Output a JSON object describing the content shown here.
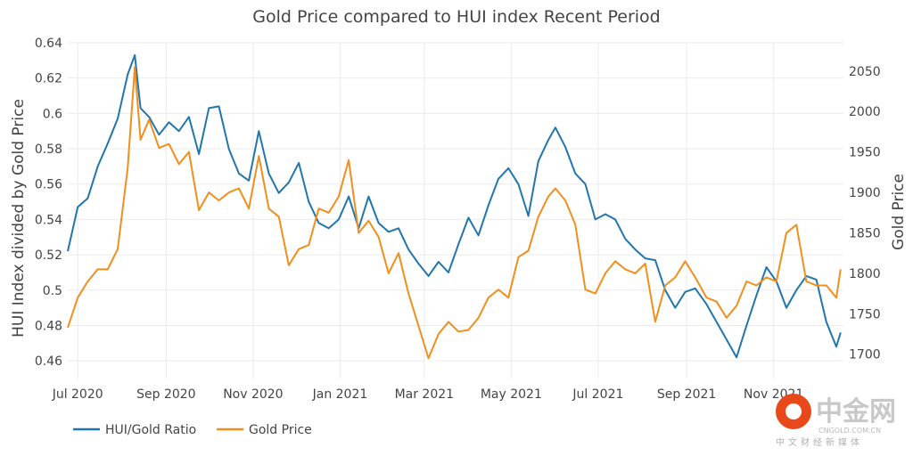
{
  "chart_data": {
    "type": "line",
    "title": "Gold Price compared to HUI index Recent Period",
    "x_tick_labels": [
      "Jul 2020",
      "Sep 2020",
      "Nov 2020",
      "Jan 2021",
      "Mar 2021",
      "May 2021",
      "Jul 2021",
      "Sep 2021",
      "Nov 2021"
    ],
    "x_range": [
      "2020-06-24",
      "2021-12-20"
    ],
    "y_left": {
      "label": "HUI Index divided by Gold Price",
      "range": [
        0.45,
        0.64
      ],
      "ticks": [
        "0.46",
        "0.48",
        "0.5",
        "0.52",
        "0.54",
        "0.56",
        "0.58",
        "0.6",
        "0.62",
        "0.64"
      ]
    },
    "y_right": {
      "label": "Gold Price",
      "range": [
        1670,
        2085
      ],
      "ticks": [
        "1700",
        "1750",
        "1800",
        "1850",
        "1900",
        "1950",
        "2000",
        "2050"
      ]
    },
    "grid": true,
    "legend_position": "bottom-left",
    "series": [
      {
        "name": "HUI/Gold Ratio",
        "axis": "left",
        "color": "#2176ae",
        "points": [
          [
            "2020-06-24",
            0.522
          ],
          [
            "2020-07-01",
            0.547
          ],
          [
            "2020-07-08",
            0.552
          ],
          [
            "2020-07-15",
            0.57
          ],
          [
            "2020-07-22",
            0.583
          ],
          [
            "2020-07-29",
            0.597
          ],
          [
            "2020-08-05",
            0.622
          ],
          [
            "2020-08-10",
            0.633
          ],
          [
            "2020-08-14",
            0.603
          ],
          [
            "2020-08-20",
            0.598
          ],
          [
            "2020-08-27",
            0.588
          ],
          [
            "2020-09-03",
            0.595
          ],
          [
            "2020-09-10",
            0.59
          ],
          [
            "2020-09-17",
            0.598
          ],
          [
            "2020-09-24",
            0.577
          ],
          [
            "2020-10-01",
            0.603
          ],
          [
            "2020-10-08",
            0.604
          ],
          [
            "2020-10-15",
            0.58
          ],
          [
            "2020-10-22",
            0.566
          ],
          [
            "2020-10-29",
            0.562
          ],
          [
            "2020-11-05",
            0.59
          ],
          [
            "2020-11-12",
            0.566
          ],
          [
            "2020-11-19",
            0.555
          ],
          [
            "2020-11-26",
            0.561
          ],
          [
            "2020-12-03",
            0.572
          ],
          [
            "2020-12-10",
            0.55
          ],
          [
            "2020-12-17",
            0.538
          ],
          [
            "2020-12-24",
            0.535
          ],
          [
            "2020-12-31",
            0.54
          ],
          [
            "2021-01-07",
            0.553
          ],
          [
            "2021-01-14",
            0.535
          ],
          [
            "2021-01-21",
            0.553
          ],
          [
            "2021-01-28",
            0.538
          ],
          [
            "2021-02-04",
            0.533
          ],
          [
            "2021-02-11",
            0.535
          ],
          [
            "2021-02-18",
            0.523
          ],
          [
            "2021-02-25",
            0.515
          ],
          [
            "2021-03-04",
            0.508
          ],
          [
            "2021-03-11",
            0.516
          ],
          [
            "2021-03-18",
            0.51
          ],
          [
            "2021-03-25",
            0.526
          ],
          [
            "2021-04-01",
            0.541
          ],
          [
            "2021-04-08",
            0.531
          ],
          [
            "2021-04-15",
            0.548
          ],
          [
            "2021-04-22",
            0.563
          ],
          [
            "2021-04-29",
            0.569
          ],
          [
            "2021-05-06",
            0.56
          ],
          [
            "2021-05-13",
            0.542
          ],
          [
            "2021-05-20",
            0.573
          ],
          [
            "2021-05-27",
            0.585
          ],
          [
            "2021-06-01",
            0.592
          ],
          [
            "2021-06-08",
            0.581
          ],
          [
            "2021-06-15",
            0.566
          ],
          [
            "2021-06-22",
            0.56
          ],
          [
            "2021-06-29",
            0.54
          ],
          [
            "2021-07-06",
            0.543
          ],
          [
            "2021-07-13",
            0.54
          ],
          [
            "2021-07-20",
            0.529
          ],
          [
            "2021-07-27",
            0.523
          ],
          [
            "2021-08-03",
            0.518
          ],
          [
            "2021-08-10",
            0.517
          ],
          [
            "2021-08-17",
            0.5
          ],
          [
            "2021-08-24",
            0.49
          ],
          [
            "2021-08-31",
            0.499
          ],
          [
            "2021-09-07",
            0.501
          ],
          [
            "2021-09-15",
            0.492
          ],
          [
            "2021-09-22",
            0.482
          ],
          [
            "2021-09-29",
            0.472
          ],
          [
            "2021-10-06",
            0.462
          ],
          [
            "2021-10-13",
            0.48
          ],
          [
            "2021-10-20",
            0.497
          ],
          [
            "2021-10-27",
            0.513
          ],
          [
            "2021-11-03",
            0.505
          ],
          [
            "2021-11-10",
            0.49
          ],
          [
            "2021-11-17",
            0.5
          ],
          [
            "2021-11-24",
            0.508
          ],
          [
            "2021-12-01",
            0.506
          ],
          [
            "2021-12-08",
            0.482
          ],
          [
            "2021-12-15",
            0.468
          ],
          [
            "2021-12-18",
            0.476
          ]
        ]
      },
      {
        "name": "Gold Price",
        "axis": "right",
        "color": "#f28e1c",
        "points": [
          [
            "2020-06-24",
            1733
          ],
          [
            "2020-07-01",
            1770
          ],
          [
            "2020-07-08",
            1790
          ],
          [
            "2020-07-15",
            1805
          ],
          [
            "2020-07-22",
            1805
          ],
          [
            "2020-07-29",
            1830
          ],
          [
            "2020-08-05",
            1930
          ],
          [
            "2020-08-10",
            2055
          ],
          [
            "2020-08-14",
            1965
          ],
          [
            "2020-08-20",
            1990
          ],
          [
            "2020-08-27",
            1955
          ],
          [
            "2020-09-03",
            1960
          ],
          [
            "2020-09-10",
            1935
          ],
          [
            "2020-09-17",
            1950
          ],
          [
            "2020-09-24",
            1878
          ],
          [
            "2020-10-01",
            1900
          ],
          [
            "2020-10-08",
            1890
          ],
          [
            "2020-10-15",
            1900
          ],
          [
            "2020-10-22",
            1905
          ],
          [
            "2020-10-29",
            1880
          ],
          [
            "2020-11-05",
            1945
          ],
          [
            "2020-11-12",
            1880
          ],
          [
            "2020-11-19",
            1870
          ],
          [
            "2020-11-26",
            1810
          ],
          [
            "2020-12-03",
            1830
          ],
          [
            "2020-12-10",
            1835
          ],
          [
            "2020-12-17",
            1880
          ],
          [
            "2020-12-24",
            1875
          ],
          [
            "2020-12-31",
            1895
          ],
          [
            "2021-01-07",
            1940
          ],
          [
            "2021-01-14",
            1850
          ],
          [
            "2021-01-21",
            1865
          ],
          [
            "2021-01-28",
            1845
          ],
          [
            "2021-02-04",
            1800
          ],
          [
            "2021-02-11",
            1825
          ],
          [
            "2021-02-18",
            1775
          ],
          [
            "2021-02-25",
            1735
          ],
          [
            "2021-03-04",
            1695
          ],
          [
            "2021-03-11",
            1725
          ],
          [
            "2021-03-18",
            1740
          ],
          [
            "2021-03-25",
            1728
          ],
          [
            "2021-04-01",
            1730
          ],
          [
            "2021-04-08",
            1745
          ],
          [
            "2021-04-15",
            1770
          ],
          [
            "2021-04-22",
            1780
          ],
          [
            "2021-04-29",
            1770
          ],
          [
            "2021-05-06",
            1820
          ],
          [
            "2021-05-13",
            1828
          ],
          [
            "2021-05-20",
            1870
          ],
          [
            "2021-05-27",
            1895
          ],
          [
            "2021-06-01",
            1905
          ],
          [
            "2021-06-08",
            1890
          ],
          [
            "2021-06-15",
            1860
          ],
          [
            "2021-06-22",
            1780
          ],
          [
            "2021-06-29",
            1775
          ],
          [
            "2021-07-06",
            1800
          ],
          [
            "2021-07-13",
            1815
          ],
          [
            "2021-07-20",
            1805
          ],
          [
            "2021-07-27",
            1800
          ],
          [
            "2021-08-03",
            1812
          ],
          [
            "2021-08-10",
            1740
          ],
          [
            "2021-08-17",
            1785
          ],
          [
            "2021-08-24",
            1795
          ],
          [
            "2021-08-31",
            1815
          ],
          [
            "2021-09-07",
            1795
          ],
          [
            "2021-09-15",
            1770
          ],
          [
            "2021-09-22",
            1765
          ],
          [
            "2021-09-29",
            1745
          ],
          [
            "2021-10-06",
            1760
          ],
          [
            "2021-10-13",
            1790
          ],
          [
            "2021-10-20",
            1785
          ],
          [
            "2021-10-27",
            1795
          ],
          [
            "2021-11-03",
            1790
          ],
          [
            "2021-11-10",
            1850
          ],
          [
            "2021-11-17",
            1860
          ],
          [
            "2021-11-24",
            1790
          ],
          [
            "2021-12-01",
            1785
          ],
          [
            "2021-12-08",
            1785
          ],
          [
            "2021-12-15",
            1770
          ],
          [
            "2021-12-18",
            1805
          ]
        ]
      }
    ]
  },
  "legend": {
    "items": [
      {
        "label": "HUI/Gold Ratio",
        "color": "#2176ae"
      },
      {
        "label": "Gold Price",
        "color": "#f28e1c"
      }
    ]
  },
  "watermark": {
    "brand_cn": "中金网",
    "domain": "CNGOLD.COM.CN",
    "slogan_cn": "中文财经新媒体",
    "logo_color": "#e8481a"
  }
}
